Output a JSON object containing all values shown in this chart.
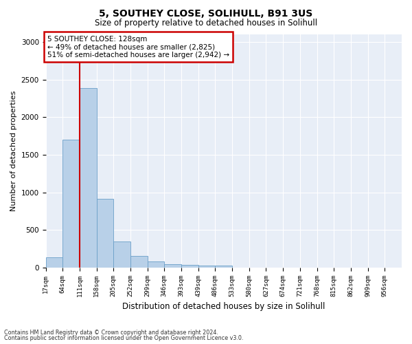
{
  "title1": "5, SOUTHEY CLOSE, SOLIHULL, B91 3US",
  "title2": "Size of property relative to detached houses in Solihull",
  "xlabel": "Distribution of detached houses by size in Solihull",
  "ylabel": "Number of detached properties",
  "footer1": "Contains HM Land Registry data © Crown copyright and database right 2024.",
  "footer2": "Contains public sector information licensed under the Open Government Licence v3.0.",
  "bar_labels": [
    "17sqm",
    "64sqm",
    "111sqm",
    "158sqm",
    "205sqm",
    "252sqm",
    "299sqm",
    "346sqm",
    "393sqm",
    "439sqm",
    "486sqm",
    "533sqm",
    "580sqm",
    "627sqm",
    "674sqm",
    "721sqm",
    "768sqm",
    "815sqm",
    "862sqm",
    "909sqm",
    "956sqm"
  ],
  "bar_values": [
    140,
    1700,
    2390,
    920,
    350,
    160,
    80,
    50,
    35,
    30,
    25,
    0,
    0,
    0,
    0,
    0,
    0,
    0,
    0,
    0,
    0
  ],
  "bar_color": "#b8d0e8",
  "bar_edge_color": "#6a9fc8",
  "background_color": "#e8eef7",
  "grid_color": "#ffffff",
  "annotation_box_text": "5 SOUTHEY CLOSE: 128sqm\n← 49% of detached houses are smaller (2,825)\n51% of semi-detached houses are larger (2,942) →",
  "annotation_box_color": "#ffffff",
  "annotation_box_edge_color": "#cc0000",
  "vline_x": 2,
  "vline_color": "#cc0000",
  "ylim": [
    0,
    3100
  ],
  "yticks": [
    0,
    500,
    1000,
    1500,
    2000,
    2500,
    3000
  ]
}
